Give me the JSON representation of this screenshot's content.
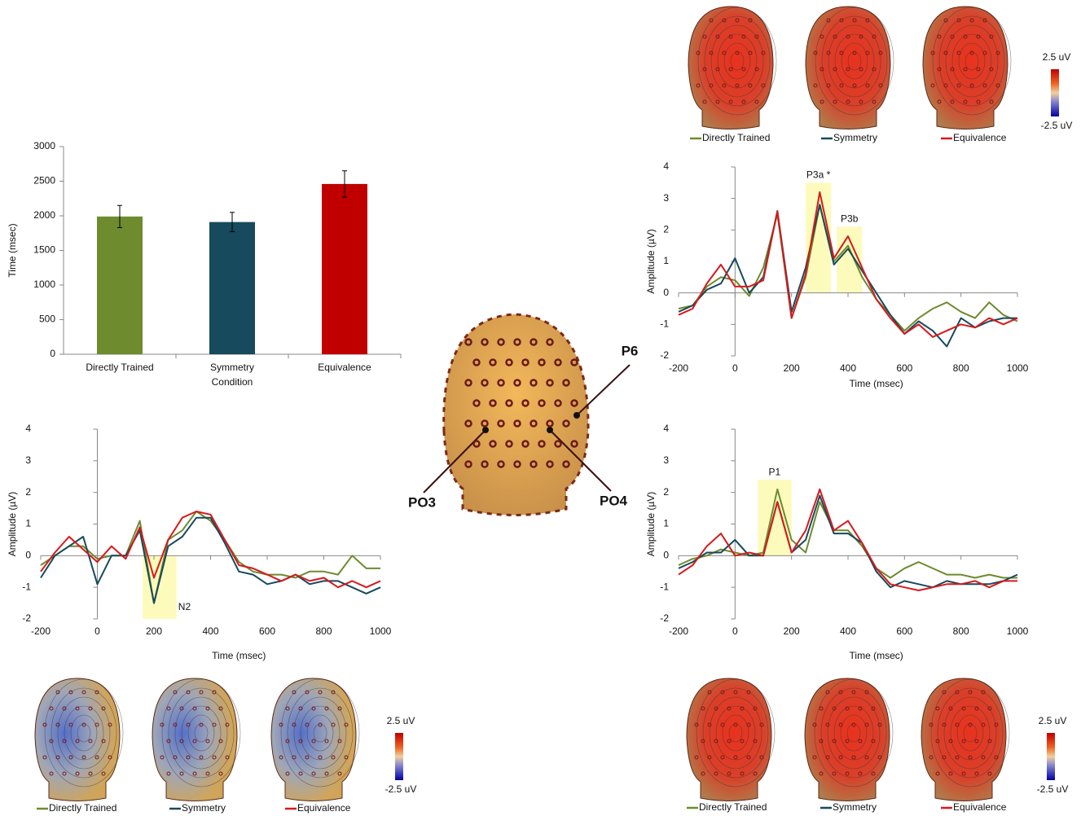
{
  "chart_data": [
    {
      "type": "bar",
      "categories": [
        "Directly Trained",
        "Symmetry",
        "Equivalence"
      ],
      "values": [
        1990,
        1910,
        2460
      ],
      "errors": [
        160,
        140,
        190
      ],
      "colors": [
        "#6e8b2e",
        "#174a5c",
        "#c00000"
      ],
      "ylim": [
        0,
        3000
      ],
      "yticks": [
        0,
        500,
        1000,
        1500,
        2000,
        2500,
        3000
      ],
      "x_label": "Condition",
      "y_label": "Time (msec)"
    },
    {
      "type": "line",
      "x": [
        -200,
        -150,
        -100,
        -50,
        0,
        50,
        100,
        150,
        200,
        250,
        300,
        350,
        400,
        450,
        500,
        550,
        600,
        650,
        700,
        750,
        800,
        850,
        900,
        950,
        1000
      ],
      "series": [
        {
          "name": "Directly Trained",
          "color": "#6e8b2e",
          "values": [
            -0.5,
            -0.4,
            0.2,
            0.5,
            0.4,
            -0.1,
            0.8,
            2.5,
            -0.8,
            0.5,
            2.8,
            1.0,
            1.5,
            0.5,
            -0.2,
            -0.7,
            -1.2,
            -0.8,
            -0.5,
            -0.3,
            -0.6,
            -0.8,
            -0.3,
            -0.7,
            -0.9
          ]
        },
        {
          "name": "Symmetry",
          "color": "#174a5c",
          "values": [
            -0.6,
            -0.4,
            0.1,
            0.3,
            1.1,
            0.0,
            0.5,
            2.6,
            -0.6,
            0.8,
            2.8,
            0.9,
            1.4,
            0.7,
            0.0,
            -0.7,
            -1.3,
            -0.9,
            -1.2,
            -1.7,
            -0.8,
            -1.1,
            -0.9,
            -0.8,
            -0.8
          ]
        },
        {
          "name": "Equivalence",
          "color": "#d7191c",
          "values": [
            -0.7,
            -0.5,
            0.3,
            0.9,
            0.2,
            0.2,
            0.4,
            2.6,
            -0.8,
            0.6,
            3.2,
            1.1,
            1.8,
            0.8,
            -0.2,
            -0.8,
            -1.3,
            -1.0,
            -1.4,
            -1.2,
            -1.0,
            -1.1,
            -0.8,
            -1.0,
            -0.8
          ]
        }
      ],
      "highlights": [
        {
          "label": "P3a *",
          "range": [
            250,
            340
          ],
          "ylim": [
            0,
            3.5
          ]
        },
        {
          "label": "P3b",
          "range": [
            360,
            450
          ],
          "ylim": [
            0,
            2.1
          ]
        }
      ],
      "xlim": [
        -200,
        1000
      ],
      "xticks": [
        -200,
        0,
        200,
        400,
        600,
        800,
        1000
      ],
      "ylim": [
        -2,
        4
      ],
      "yticks": [
        -2,
        -1,
        0,
        1,
        2,
        3,
        4
      ],
      "x_label": "Time (msec)",
      "y_label": "Amplitude (µV)"
    },
    {
      "type": "line",
      "x": [
        -200,
        -150,
        -100,
        -50,
        0,
        50,
        100,
        150,
        200,
        250,
        300,
        350,
        400,
        450,
        500,
        550,
        600,
        650,
        700,
        750,
        800,
        850,
        900,
        950,
        1000
      ],
      "series": [
        {
          "name": "Directly Trained",
          "color": "#6e8b2e",
          "values": [
            -0.3,
            0.0,
            0.3,
            0.3,
            -0.1,
            0.0,
            0.0,
            1.1,
            -1.5,
            0.5,
            0.8,
            1.4,
            1.1,
            0.5,
            -0.2,
            -0.5,
            -0.6,
            -0.6,
            -0.7,
            -0.5,
            -0.5,
            -0.6,
            0.0,
            -0.4,
            -0.4
          ]
        },
        {
          "name": "Symmetry",
          "color": "#174a5c",
          "values": [
            -0.7,
            0.0,
            0.3,
            0.6,
            -0.9,
            0.0,
            0.0,
            0.8,
            -1.5,
            0.3,
            0.6,
            1.2,
            1.2,
            0.4,
            -0.5,
            -0.6,
            -0.9,
            -0.8,
            -0.6,
            -0.9,
            -0.8,
            -0.8,
            -1.0,
            -1.2,
            -1.0
          ]
        },
        {
          "name": "Equivalence",
          "color": "#d7191c",
          "values": [
            -0.5,
            0.1,
            0.6,
            0.2,
            -0.2,
            0.3,
            -0.1,
            0.9,
            -0.7,
            0.5,
            1.2,
            1.4,
            1.3,
            0.5,
            -0.3,
            -0.4,
            -0.6,
            -0.8,
            -0.6,
            -0.8,
            -0.7,
            -1.0,
            -0.8,
            -1.0,
            -0.8
          ]
        }
      ],
      "highlights": [
        {
          "label": "N2",
          "range": [
            160,
            280
          ],
          "ylim": [
            -2,
            0
          ]
        }
      ],
      "xlim": [
        -200,
        1000
      ],
      "xticks": [
        -200,
        0,
        200,
        400,
        600,
        800,
        1000
      ],
      "ylim": [
        -2,
        4
      ],
      "yticks": [
        -2,
        -1,
        0,
        1,
        2,
        3,
        4
      ],
      "x_label": "Time (msec)",
      "y_label": "Amplitude (µV)"
    },
    {
      "type": "line",
      "x": [
        -200,
        -150,
        -100,
        -50,
        0,
        50,
        100,
        150,
        200,
        250,
        300,
        350,
        400,
        450,
        500,
        550,
        600,
        650,
        700,
        750,
        800,
        850,
        900,
        950,
        1000
      ],
      "series": [
        {
          "name": "Directly Trained",
          "color": "#6e8b2e",
          "values": [
            -0.3,
            -0.1,
            0.0,
            0.2,
            0.1,
            0.0,
            0.1,
            2.1,
            0.5,
            0.1,
            1.7,
            0.8,
            0.8,
            0.3,
            -0.4,
            -0.7,
            -0.4,
            -0.2,
            -0.4,
            -0.6,
            -0.6,
            -0.7,
            -0.6,
            -0.7,
            -0.7
          ]
        },
        {
          "name": "Symmetry",
          "color": "#174a5c",
          "values": [
            -0.4,
            -0.2,
            0.1,
            0.1,
            0.5,
            0.0,
            0.0,
            1.7,
            0.1,
            0.5,
            1.9,
            0.7,
            0.7,
            0.4,
            -0.5,
            -1.0,
            -0.8,
            -0.9,
            -1.0,
            -0.8,
            -0.9,
            -0.9,
            -0.9,
            -0.8,
            -0.6
          ]
        },
        {
          "name": "Equivalence",
          "color": "#d7191c",
          "values": [
            -0.6,
            -0.3,
            0.3,
            0.7,
            0.0,
            0.1,
            0.0,
            1.7,
            0.1,
            0.8,
            2.1,
            0.8,
            1.1,
            0.4,
            -0.4,
            -0.9,
            -1.0,
            -1.1,
            -1.0,
            -0.9,
            -0.9,
            -0.8,
            -1.0,
            -0.8,
            -0.8
          ]
        }
      ],
      "highlights": [
        {
          "label": "P1",
          "range": [
            80,
            200
          ],
          "ylim": [
            0,
            2.4
          ]
        }
      ],
      "xlim": [
        -200,
        1000
      ],
      "xticks": [
        -200,
        0,
        200,
        400,
        600,
        800,
        1000
      ],
      "ylim": [
        -2,
        4
      ],
      "yticks": [
        -2,
        -1,
        0,
        1,
        2,
        3,
        4
      ],
      "x_label": "Time (msec)",
      "y_label": "Amplitude (µV)"
    }
  ],
  "electrode_labels": [
    "P6",
    "PO3",
    "PO4"
  ],
  "topomap_panels": [
    {
      "colorbar_max_label": "2.5 uV",
      "colorbar_min_label": "-2.5 uV"
    },
    {
      "colorbar_max_label": "2.5 uV",
      "colorbar_min_label": "-2.5 uV"
    },
    {
      "colorbar_max_label": "2.5 uV",
      "colorbar_min_label": "-2.5 uV"
    }
  ]
}
